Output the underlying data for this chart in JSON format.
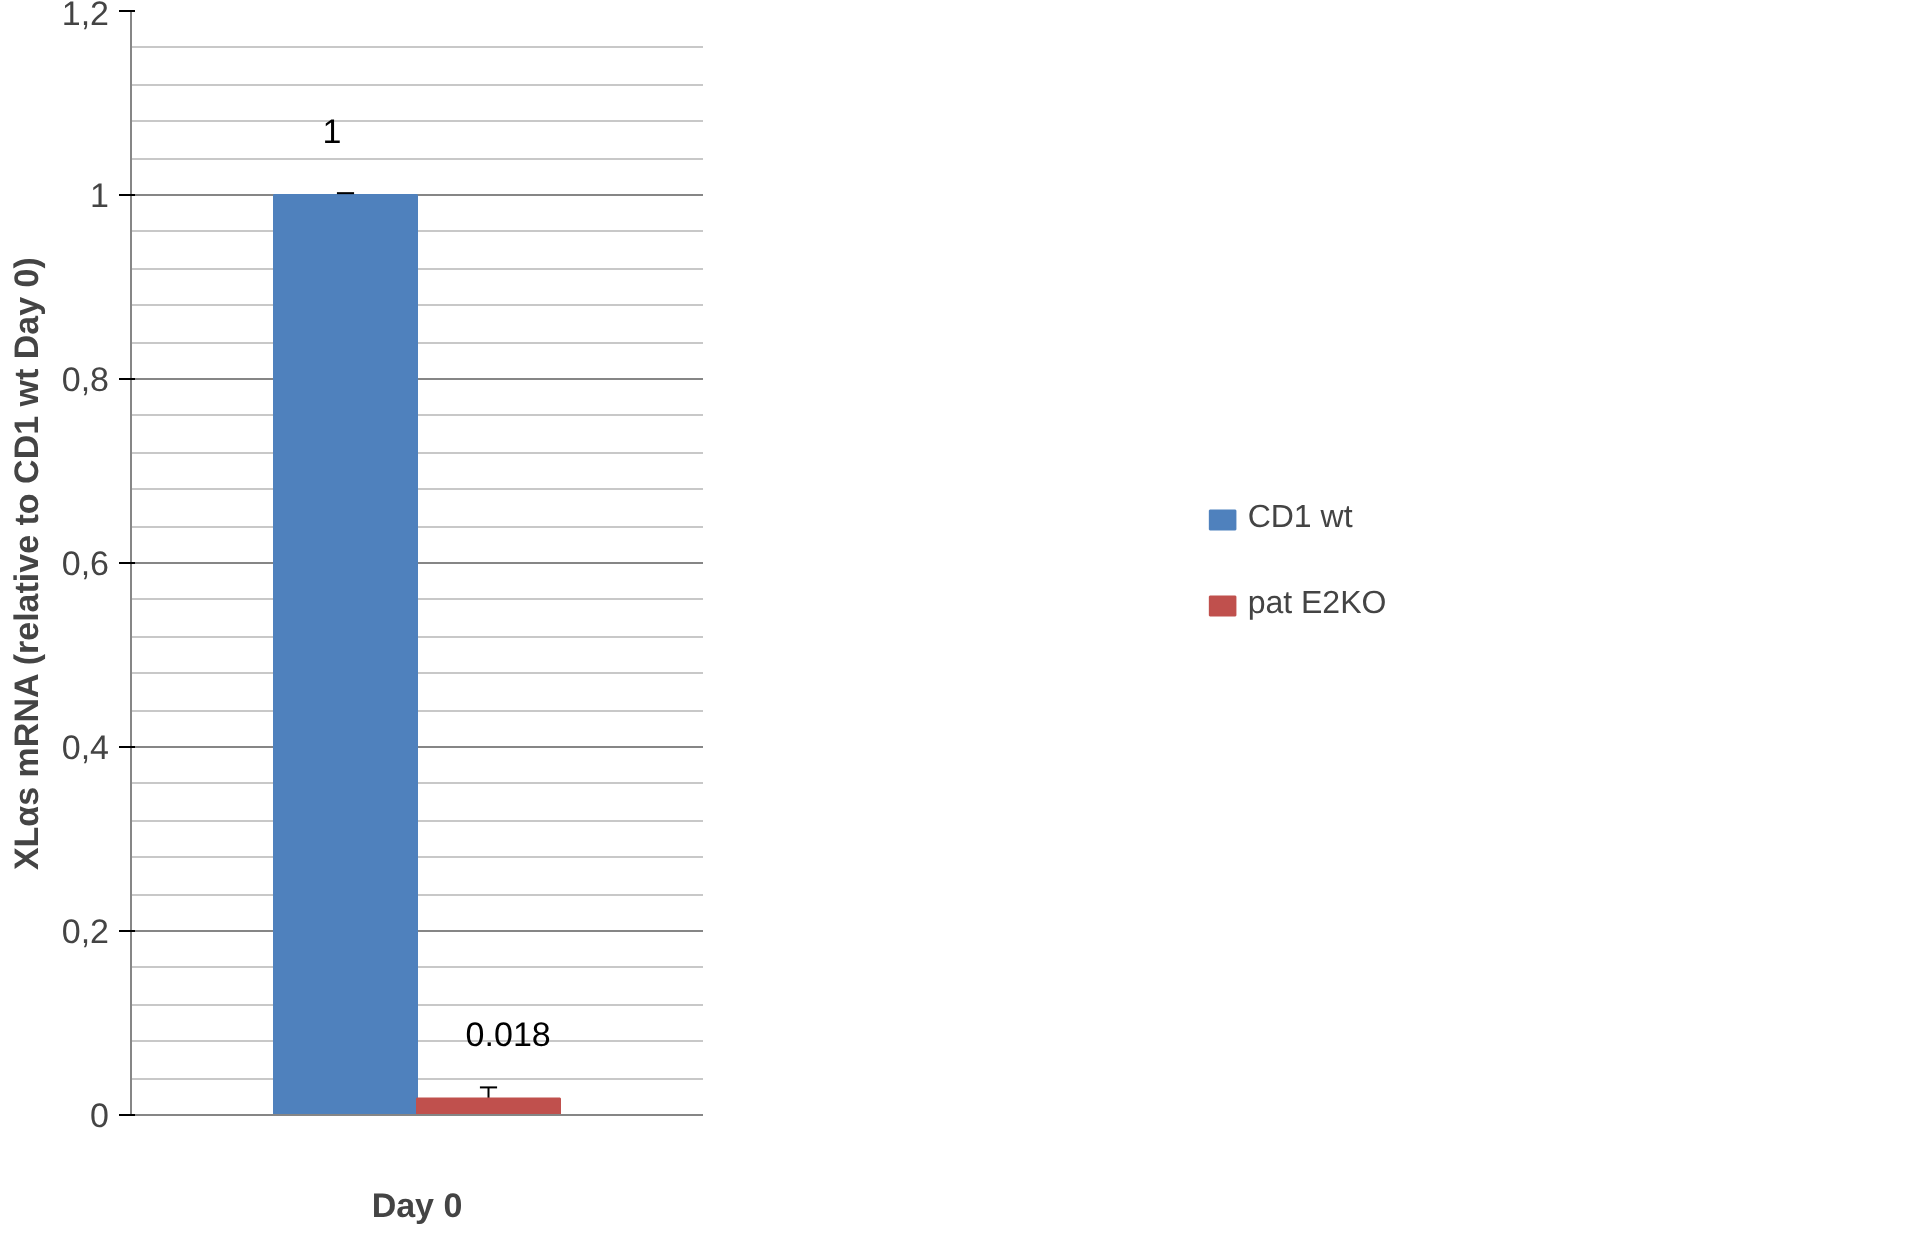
{
  "chart_data": {
    "type": "bar",
    "ylabel": "XLαs mRNA (relative to CD1 wt Day 0)",
    "categories": [
      "Day 0"
    ],
    "series": [
      {
        "name": "CD1 wt",
        "color": "#4f81bd",
        "values": [
          1
        ],
        "errors": [
          0.002
        ],
        "value_labels": [
          "1"
        ]
      },
      {
        "name": "pat E2KO",
        "color": "#c0504d",
        "values": [
          0.018
        ],
        "errors": [
          0.012
        ],
        "value_labels": [
          "0.018"
        ]
      }
    ],
    "ylim": [
      0,
      1.2
    ],
    "yticks": [
      0,
      {
        "value": 0.2,
        "label": "0,2"
      },
      {
        "value": 0.4,
        "label": "0,4"
      },
      {
        "value": 0.6,
        "label": "0,6"
      },
      {
        "value": 0.8,
        "label": "0,8"
      },
      1,
      {
        "value": 1.2,
        "label": "1,2"
      }
    ],
    "grid": "y",
    "legend": "right"
  }
}
